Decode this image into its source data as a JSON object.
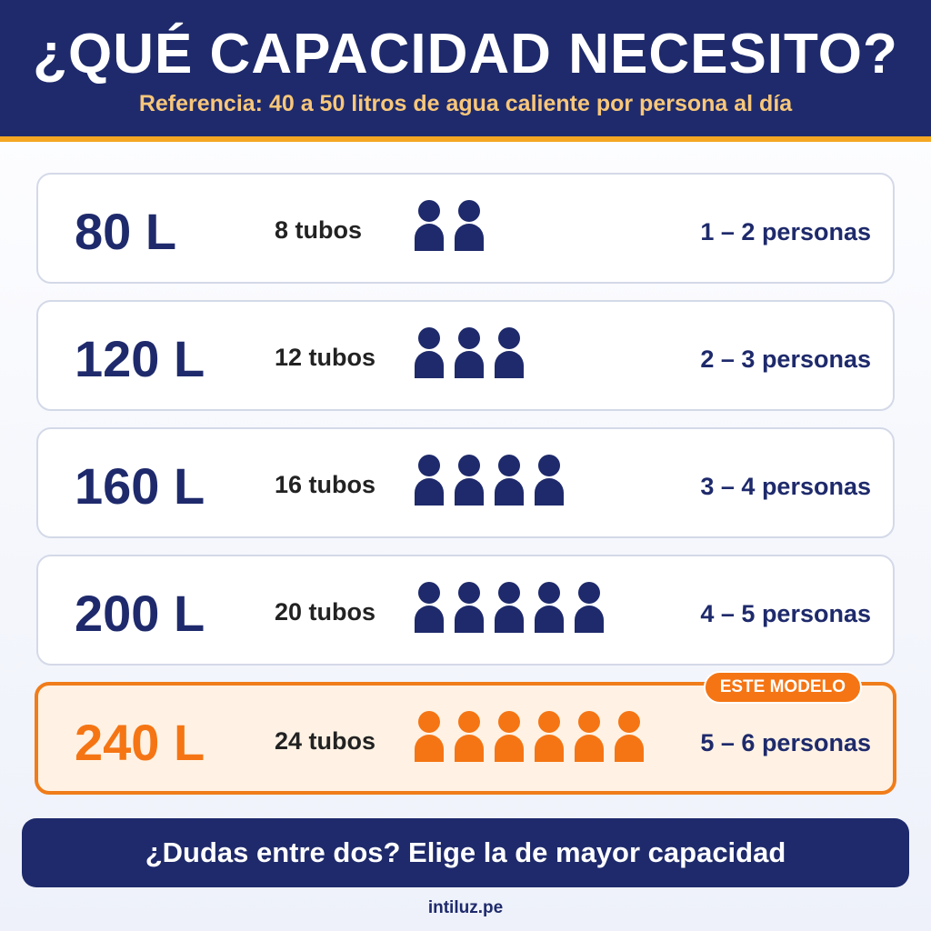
{
  "header": {
    "title": "¿QUÉ CAPACIDAD NECESITO?",
    "subtitle": "Referencia: 40 a 50 litros de agua caliente por persona al día"
  },
  "rows": [
    {
      "capacity": "80 L",
      "tubes": "8 tubos",
      "people": "1 – 2 personas",
      "icons": 2,
      "highlighted": false
    },
    {
      "capacity": "120 L",
      "tubes": "12 tubos",
      "people": "2 – 3 personas",
      "icons": 3,
      "highlighted": false
    },
    {
      "capacity": "160 L",
      "tubes": "16 tubos",
      "people": "3 – 4 personas",
      "icons": 4,
      "highlighted": false
    },
    {
      "capacity": "200 L",
      "tubes": "20 tubos",
      "people": "4 – 5 personas",
      "icons": 5,
      "highlighted": false
    },
    {
      "capacity": "240 L",
      "tubes": "24 tubos",
      "people": "5 – 6 personas",
      "icons": 6,
      "highlighted": true
    }
  ],
  "badge": "ESTE MODELO",
  "footer": {
    "banner": "¿Dudas entre dos? Elige la de mayor capacidad",
    "url": "intiluz.pe"
  }
}
